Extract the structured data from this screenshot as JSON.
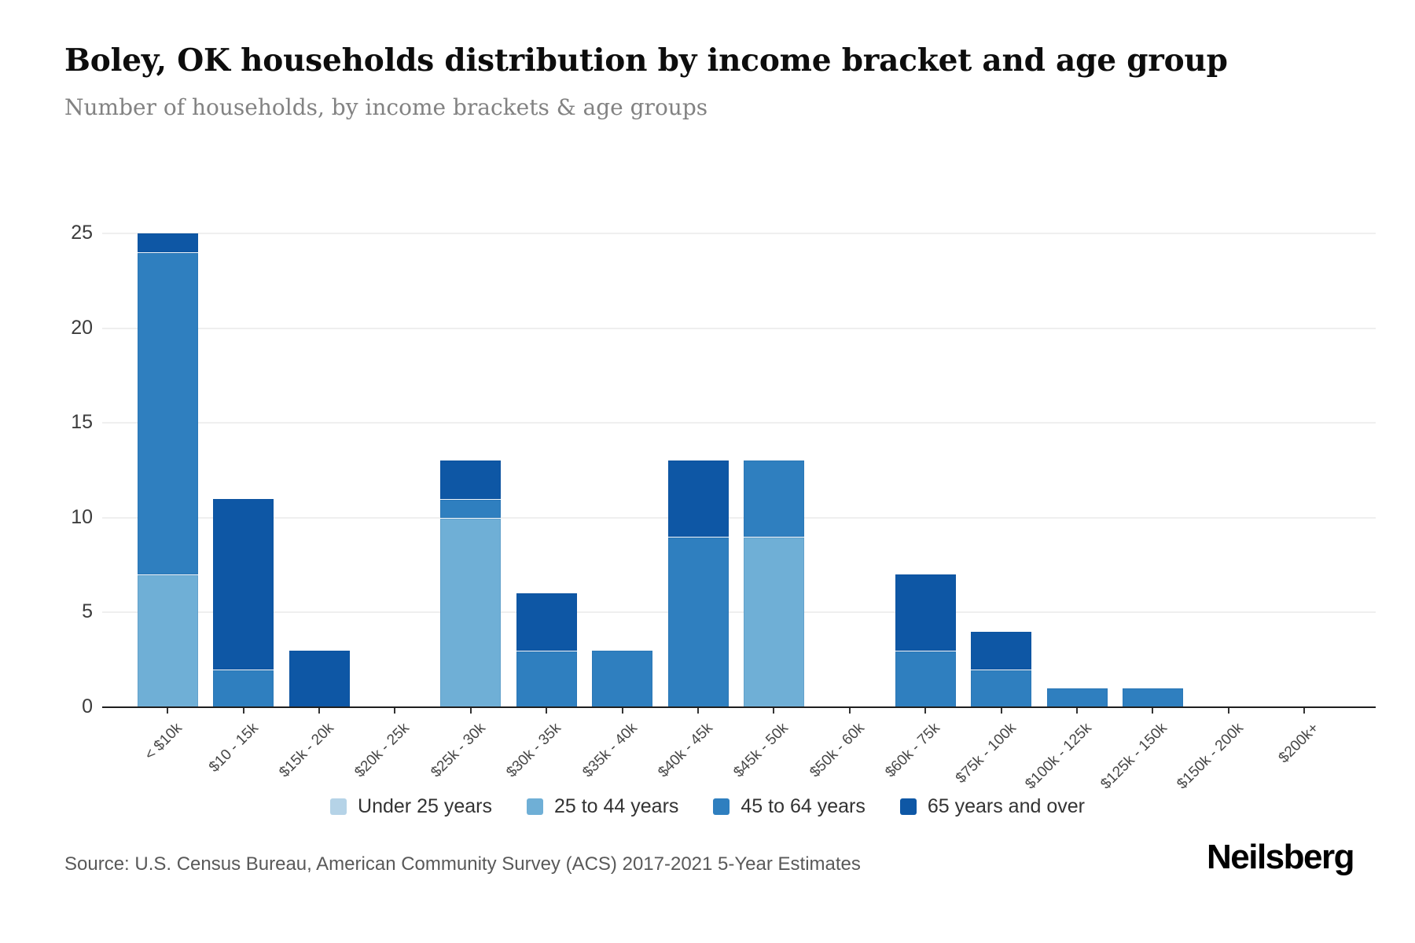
{
  "header": {
    "title": "Boley, OK households distribution by income bracket and age group",
    "subtitle": "Number of households, by income brackets & age groups"
  },
  "chart_data": {
    "type": "bar",
    "stacked": true,
    "title": "Boley, OK households distribution by income bracket and age group",
    "xlabel": "",
    "ylabel": "Number of households",
    "ylim": [
      0,
      25
    ],
    "yticks": [
      0,
      5,
      10,
      15,
      20,
      25
    ],
    "grid": "horizontal",
    "legend_position": "bottom",
    "categories": [
      "< $10k",
      "$10 - 15k",
      "$15k - 20k",
      "$20k - 25k",
      "$25k - 30k",
      "$30k - 35k",
      "$35k - 40k",
      "$40k - 45k",
      "$45k - 50k",
      "$50k - 60k",
      "$60k - 75k",
      "$75k - 100k",
      "$100k - 125k",
      "$125k - 150k",
      "$150k - 200k",
      "$200k+"
    ],
    "series": [
      {
        "name": "Under 25 years",
        "color": "#b5d3e7",
        "values": [
          0,
          0,
          0,
          0,
          0,
          0,
          0,
          0,
          0,
          0,
          0,
          0,
          0,
          0,
          0,
          0
        ]
      },
      {
        "name": "25 to 44 years",
        "color": "#6fafd6",
        "values": [
          7,
          0,
          0,
          0,
          10,
          0,
          0,
          0,
          9,
          0,
          0,
          0,
          0,
          0,
          0,
          0
        ]
      },
      {
        "name": "45 to 64 years",
        "color": "#2f7fbf",
        "values": [
          17,
          2,
          0,
          0,
          1,
          3,
          3,
          9,
          4,
          0,
          3,
          2,
          1,
          1,
          0,
          0
        ]
      },
      {
        "name": "65 years and over",
        "color": "#0e57a5",
        "values": [
          1,
          9,
          3,
          0,
          2,
          3,
          0,
          4,
          0,
          0,
          4,
          2,
          0,
          0,
          0,
          0
        ]
      }
    ],
    "totals": [
      25,
      11,
      3,
      0,
      13,
      6,
      3,
      13,
      13,
      0,
      7,
      4,
      1,
      1,
      0,
      0
    ]
  },
  "footer": {
    "source": "Source: U.S. Census Bureau, American Community Survey (ACS) 2017-2021 5-Year Estimates",
    "brand": "Neilsberg"
  }
}
